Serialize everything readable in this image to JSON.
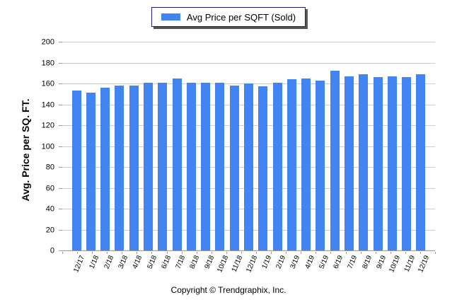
{
  "legend": {
    "label": "Avg Price per SQFT (Sold)"
  },
  "chart_data": {
    "type": "bar",
    "title": "",
    "series_name": "Avg Price per SQFT (Sold)",
    "categories": [
      "12/17",
      "1/18",
      "2/18",
      "3/18",
      "4/18",
      "5/18",
      "6/18",
      "7/18",
      "8/18",
      "9/18",
      "10/18",
      "11/18",
      "12/18",
      "1/19",
      "2/19",
      "3/19",
      "4/19",
      "5/19",
      "6/19",
      "7/19",
      "8/19",
      "9/19",
      "10/19",
      "11/19",
      "12/19"
    ],
    "values": [
      153,
      151,
      156,
      158,
      158,
      161,
      161,
      165,
      161,
      161,
      161,
      158,
      160,
      157,
      161,
      164,
      165,
      163,
      172,
      167,
      169,
      166,
      167,
      166,
      169
    ],
    "ylabel": "Avg. Price per SQ. FT.",
    "xlabel": "",
    "ylim": [
      0,
      200
    ],
    "yticks": [
      0,
      20,
      40,
      60,
      80,
      100,
      120,
      140,
      160,
      180,
      200
    ],
    "grid": true,
    "legend_position": "top-center",
    "bar_color": "#4384f3"
  },
  "colors": {
    "bar": "#4384f3",
    "gridline": "#cccccc",
    "axis": "#999999",
    "legend_border": "#1b1b66",
    "text": "#000000",
    "background": "#ffffff"
  },
  "footer": {
    "copyright": "Copyright © Trendgraphix, Inc."
  }
}
